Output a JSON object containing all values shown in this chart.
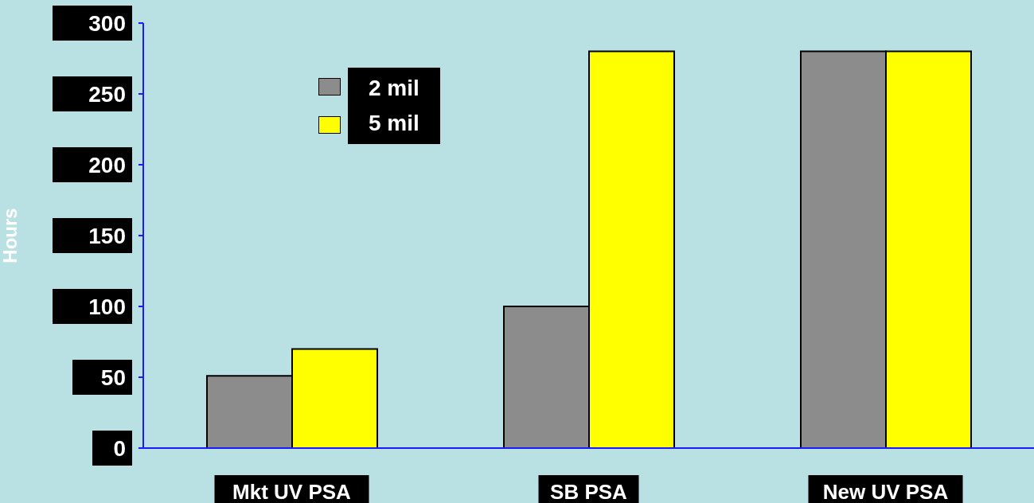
{
  "chart_data": {
    "type": "bar",
    "ylabel": "Hours",
    "categories": [
      "Mkt UV PSA",
      "SB PSA",
      "New UV PSA"
    ],
    "series": [
      {
        "name": "2 mil",
        "color": "#8c8c8c",
        "values": [
          51,
          100,
          280
        ]
      },
      {
        "name": "5 mil",
        "color": "#ffff00",
        "values": [
          70,
          280,
          280
        ]
      }
    ],
    "ylim": [
      0,
      300
    ],
    "yticks": [
      0,
      50,
      100,
      150,
      200,
      250,
      300
    ],
    "legend": "top left"
  }
}
